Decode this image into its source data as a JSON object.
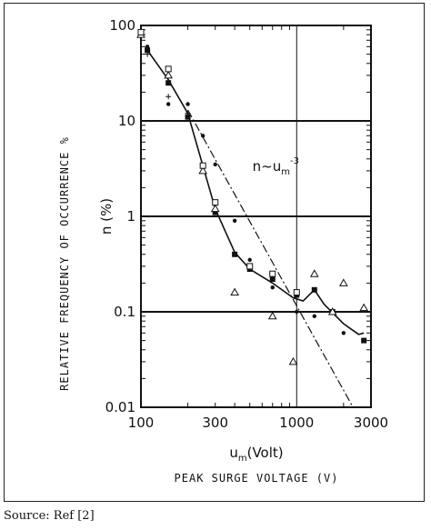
{
  "chart_data": {
    "type": "scatter",
    "x_scale": "log",
    "y_scale": "log",
    "xlim": [
      100,
      3000
    ],
    "ylim": [
      0.01,
      100
    ],
    "x_ticks": [
      100,
      300,
      1000,
      3000
    ],
    "x_tick_labels": [
      "100",
      "300",
      "1000",
      "3000"
    ],
    "y_ticks": [
      100,
      10,
      1,
      0.1,
      0.01
    ],
    "y_tick_labels": [
      "100",
      "10",
      "1",
      "0.1",
      "0.01"
    ],
    "xlabel_main": "um(Volt)",
    "xlabel_main_base": "u",
    "xlabel_main_sub": "m",
    "xlabel_main_rest": "(Volt)",
    "xlabel_caption": "PEAK SURGE VOLTAGE (V)",
    "ylabel_caption": "RELATIVE FREQUENCY OF OCCURRENCE %",
    "ylabel_main": "n (%)",
    "grid": "horizontal lines at 0.1, 1, 10; vertical line at 1000",
    "annotation": {
      "text_base": "n~u",
      "text_sub": "m",
      "text_sup": "-3",
      "position_data": [
        520,
        3.0
      ]
    },
    "reference_line": {
      "name": "n~um^-3",
      "style": "dash-dot",
      "points": [
        [
          200,
          13
        ],
        [
          2300,
          0.01
        ]
      ]
    },
    "series": [
      {
        "marker": "line",
        "values": [
          [
            110,
            55
          ],
          [
            150,
            27
          ],
          [
            200,
            12
          ],
          [
            300,
            1.2
          ],
          [
            400,
            0.42
          ],
          [
            500,
            0.28
          ],
          [
            700,
            0.2
          ],
          [
            950,
            0.14
          ],
          [
            1100,
            0.13
          ],
          [
            1300,
            0.17
          ],
          [
            1500,
            0.12
          ],
          [
            2000,
            0.075
          ],
          [
            2500,
            0.058
          ],
          [
            2700,
            0.06
          ]
        ]
      },
      {
        "marker": "filled-square",
        "values": [
          [
            110,
            55
          ],
          [
            150,
            25
          ],
          [
            200,
            11
          ],
          [
            300,
            1.1
          ],
          [
            400,
            0.4
          ],
          [
            500,
            0.28
          ],
          [
            700,
            0.22
          ],
          [
            1000,
            0.15
          ],
          [
            1300,
            0.17
          ],
          [
            1700,
            0.1
          ],
          [
            2700,
            0.05
          ]
        ]
      },
      {
        "marker": "open-triangle",
        "values": [
          [
            100,
            80
          ],
          [
            150,
            30
          ],
          [
            250,
            3.0
          ],
          [
            300,
            1.2
          ],
          [
            400,
            0.16
          ],
          [
            700,
            0.09
          ],
          [
            950,
            0.03
          ],
          [
            1300,
            0.25
          ],
          [
            1700,
            0.1
          ],
          [
            2000,
            0.2
          ],
          [
            2700,
            0.11
          ]
        ]
      },
      {
        "marker": "dot",
        "values": [
          [
            110,
            60
          ],
          [
            150,
            15
          ],
          [
            200,
            15
          ],
          [
            250,
            7
          ],
          [
            300,
            3.5
          ],
          [
            400,
            0.9
          ],
          [
            500,
            0.35
          ],
          [
            700,
            0.18
          ],
          [
            1000,
            0.1
          ],
          [
            1300,
            0.09
          ],
          [
            2000,
            0.06
          ]
        ]
      },
      {
        "marker": "plus",
        "values": [
          [
            110,
            50
          ],
          [
            150,
            18
          ],
          [
            200,
            12
          ]
        ]
      },
      {
        "marker": "open-square",
        "values": [
          [
            100,
            85
          ],
          [
            150,
            35
          ],
          [
            250,
            3.4
          ],
          [
            300,
            1.4
          ],
          [
            500,
            0.3
          ],
          [
            700,
            0.25
          ],
          [
            1000,
            0.16
          ]
        ]
      }
    ]
  },
  "footer": {
    "source": "Source: Ref [2]"
  }
}
